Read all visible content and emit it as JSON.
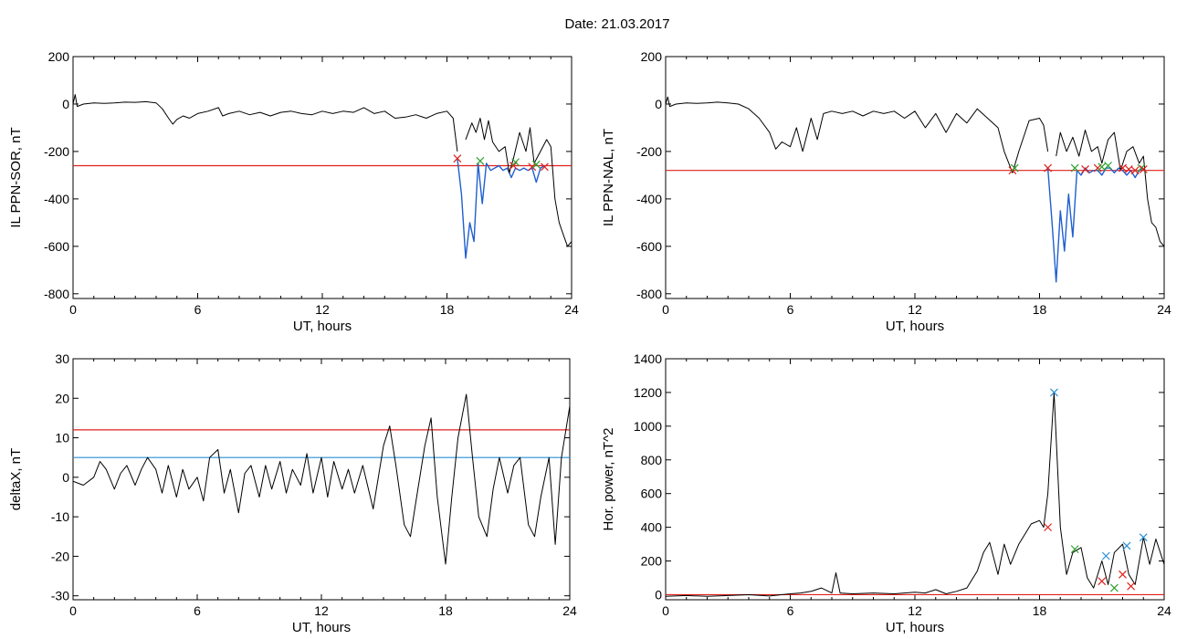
{
  "page": {
    "title": "Date:  21.03.2017"
  },
  "colors": {
    "trace": "#000000",
    "highlight": "#1f5fd0",
    "red": "#e0201c",
    "blue": "#2a8fd6",
    "green": "#2ca02c"
  },
  "chart_data": [
    {
      "type": "line",
      "id": "sor",
      "xlabel": "UT, hours",
      "ylabel": "IL PPN-SOR, nT",
      "xlim": [
        0,
        24
      ],
      "ylim": [
        -820,
        200
      ],
      "xticks": [
        0,
        6,
        12,
        18,
        24
      ],
      "yticks": [
        200,
        0,
        -200,
        -400,
        -600,
        -800
      ],
      "threshold_red": -260,
      "series": [
        {
          "role": "trace",
          "x": [
            0,
            0.1,
            0.2,
            0.5,
            1,
            1.5,
            2,
            2.5,
            3,
            3.5,
            4,
            4.3,
            4.6,
            4.8,
            5.0,
            5.3,
            5.6,
            6,
            6.5,
            7,
            7.2,
            7.5,
            8,
            8.5,
            9,
            9.5,
            10,
            10.5,
            11,
            11.5,
            12,
            12.5,
            13,
            13.5,
            14,
            14.5,
            15,
            15.5,
            16,
            16.5,
            17,
            17.5,
            18,
            18.3,
            18.5
          ],
          "y": [
            0,
            40,
            -10,
            0,
            5,
            3,
            5,
            8,
            7,
            10,
            5,
            -20,
            -60,
            -85,
            -65,
            -50,
            -60,
            -40,
            -30,
            -15,
            -50,
            -40,
            -30,
            -45,
            -35,
            -50,
            -35,
            -30,
            -40,
            -45,
            -30,
            -40,
            -30,
            -35,
            -15,
            -40,
            -30,
            -60,
            -55,
            -45,
            -60,
            -40,
            -30,
            -60,
            -200
          ]
        },
        {
          "role": "highlight",
          "x": [
            18.5,
            18.7,
            18.9,
            19.1,
            19.3,
            19.5,
            19.7,
            19.9,
            20.1,
            20.3,
            20.5,
            20.7,
            20.9,
            21.1,
            21.3,
            21.5,
            21.7,
            21.9,
            22.1,
            22.3,
            22.5,
            22.7
          ],
          "y": [
            -230,
            -380,
            -650,
            -500,
            -580,
            -250,
            -420,
            -250,
            -280,
            -270,
            -260,
            -280,
            -270,
            -310,
            -270,
            -280,
            -270,
            -280,
            -270,
            -330,
            -270,
            -260
          ]
        },
        {
          "role": "trace",
          "x": [
            18.9,
            19.2,
            19.4,
            19.6,
            19.8,
            20.0,
            20.2,
            20.5,
            20.8,
            21.0,
            21.2,
            21.5,
            21.8,
            22.0,
            22.2,
            22.5,
            22.8,
            23.0,
            23.2,
            23.4,
            23.6,
            23.8,
            24
          ],
          "y": [
            -150,
            -80,
            -120,
            -60,
            -150,
            -70,
            -160,
            -200,
            -180,
            -290,
            -230,
            -120,
            -200,
            -100,
            -250,
            -200,
            -150,
            -180,
            -400,
            -500,
            -550,
            -600,
            -580
          ]
        }
      ],
      "markers": [
        {
          "x": 18.5,
          "y": -230,
          "color": "red"
        },
        {
          "x": 19.6,
          "y": -240,
          "color": "green"
        },
        {
          "x": 21.2,
          "y": -260,
          "color": "red"
        },
        {
          "x": 21.3,
          "y": -245,
          "color": "green"
        },
        {
          "x": 22.1,
          "y": -265,
          "color": "red"
        },
        {
          "x": 22.3,
          "y": -255,
          "color": "green"
        },
        {
          "x": 22.7,
          "y": -265,
          "color": "red"
        }
      ]
    },
    {
      "type": "line",
      "id": "nal",
      "xlabel": "UT, hours",
      "ylabel": "IL PPN-NAL, nT",
      "xlim": [
        0,
        24
      ],
      "ylim": [
        -820,
        200
      ],
      "xticks": [
        0,
        6,
        12,
        18,
        24
      ],
      "yticks": [
        200,
        0,
        -200,
        -400,
        -600,
        -800
      ],
      "threshold_red": -280,
      "series": [
        {
          "role": "trace",
          "x": [
            0,
            0.1,
            0.2,
            0.5,
            1,
            1.5,
            2,
            2.5,
            3,
            3.5,
            4,
            4.5,
            5,
            5.3,
            5.6,
            6,
            6.3,
            6.6,
            7,
            7.3,
            7.6,
            8,
            8.5,
            9,
            9.5,
            10,
            10.5,
            11,
            11.5,
            12,
            12.5,
            13,
            13.5,
            14,
            14.5,
            15,
            15.5,
            16,
            16.3,
            16.7,
            17,
            17.5,
            18,
            18.2,
            18.4
          ],
          "y": [
            0,
            30,
            -10,
            0,
            5,
            3,
            5,
            8,
            5,
            0,
            -20,
            -60,
            -120,
            -190,
            -160,
            -180,
            -100,
            -200,
            -60,
            -150,
            -40,
            -30,
            -40,
            -30,
            -50,
            -30,
            -40,
            -30,
            -60,
            -30,
            -100,
            -40,
            -120,
            -40,
            -80,
            -20,
            -60,
            -100,
            -200,
            -290,
            -200,
            -70,
            -60,
            -90,
            -200
          ]
        },
        {
          "role": "highlight",
          "x": [
            18.4,
            18.6,
            18.8,
            19.0,
            19.2,
            19.4,
            19.6,
            19.8,
            20.0,
            20.2,
            20.4,
            20.6,
            20.8,
            21.0,
            21.2,
            21.4,
            21.6,
            21.8,
            22.0,
            22.2,
            22.4,
            22.6,
            22.8,
            23.0
          ],
          "y": [
            -270,
            -500,
            -750,
            -450,
            -620,
            -380,
            -560,
            -280,
            -300,
            -270,
            -290,
            -280,
            -280,
            -300,
            -270,
            -270,
            -290,
            -270,
            -280,
            -300,
            -280,
            -310,
            -280,
            -270
          ]
        },
        {
          "role": "trace",
          "x": [
            18.8,
            19.0,
            19.3,
            19.6,
            19.9,
            20.2,
            20.5,
            20.8,
            21.0,
            21.3,
            21.6,
            21.9,
            22.2,
            22.5,
            22.8,
            23.0,
            23.2,
            23.4,
            23.6,
            23.8,
            24
          ],
          "y": [
            -220,
            -120,
            -200,
            -140,
            -220,
            -110,
            -200,
            -180,
            -250,
            -150,
            -120,
            -280,
            -200,
            -180,
            -250,
            -220,
            -400,
            -500,
            -520,
            -580,
            -600
          ]
        }
      ],
      "markers": [
        {
          "x": 16.7,
          "y": -280,
          "color": "red"
        },
        {
          "x": 16.8,
          "y": -270,
          "color": "green"
        },
        {
          "x": 18.4,
          "y": -270,
          "color": "red"
        },
        {
          "x": 19.7,
          "y": -270,
          "color": "green"
        },
        {
          "x": 20.2,
          "y": -275,
          "color": "red"
        },
        {
          "x": 20.8,
          "y": -270,
          "color": "red"
        },
        {
          "x": 21.0,
          "y": -265,
          "color": "green"
        },
        {
          "x": 21.3,
          "y": -260,
          "color": "green"
        },
        {
          "x": 22.0,
          "y": -270,
          "color": "red"
        },
        {
          "x": 22.3,
          "y": -275,
          "color": "red"
        },
        {
          "x": 22.6,
          "y": -280,
          "color": "red"
        },
        {
          "x": 22.9,
          "y": -270,
          "color": "green"
        },
        {
          "x": 23.0,
          "y": -275,
          "color": "red"
        }
      ]
    },
    {
      "type": "line",
      "id": "deltax",
      "xlabel": "UT, hours",
      "ylabel": "deltaX, nT",
      "xlim": [
        0,
        24
      ],
      "ylim": [
        -31,
        30
      ],
      "xticks": [
        0,
        6,
        12,
        18,
        24
      ],
      "yticks": [
        30,
        20,
        10,
        0,
        -10,
        -20,
        -30
      ],
      "threshold_red": 12,
      "threshold_blue": 5,
      "series": [
        {
          "role": "trace",
          "x": [
            0,
            0.5,
            1,
            1.3,
            1.6,
            2,
            2.3,
            2.6,
            3,
            3.3,
            3.6,
            4,
            4.3,
            4.6,
            5,
            5.3,
            5.6,
            6,
            6.3,
            6.6,
            7,
            7.3,
            7.6,
            8,
            8.3,
            8.6,
            9,
            9.3,
            9.6,
            10,
            10.3,
            10.6,
            11,
            11.3,
            11.6,
            12,
            12.3,
            12.6,
            13,
            13.3,
            13.6,
            14,
            14.5,
            15,
            15.3,
            15.6,
            16,
            16.3,
            16.6,
            17,
            17.3,
            17.6,
            18,
            18.3,
            18.6,
            19,
            19.3,
            19.6,
            20,
            20.3,
            20.6,
            21,
            21.3,
            21.6,
            22,
            22.3,
            22.6,
            23,
            23.3,
            23.6,
            24
          ],
          "y": [
            -1,
            -2,
            0,
            4,
            2,
            -3,
            1,
            3,
            -2,
            2,
            5,
            2,
            -4,
            3,
            -5,
            2,
            -3,
            0,
            -6,
            5,
            7,
            -4,
            2,
            -9,
            1,
            3,
            -5,
            3,
            -3,
            4,
            -4,
            2,
            -2,
            6,
            -4,
            5,
            -5,
            4,
            -3,
            2,
            -4,
            3,
            -8,
            8,
            13,
            3,
            -12,
            -15,
            -5,
            8,
            15,
            -5,
            -22,
            -5,
            10,
            21,
            5,
            -10,
            -15,
            -3,
            5,
            -4,
            3,
            5,
            -12,
            -15,
            -5,
            5,
            -17,
            5,
            18
          ]
        }
      ],
      "markers": []
    },
    {
      "type": "line",
      "id": "power",
      "xlabel": "UT, hours",
      "ylabel": "Hor. power, nT^2",
      "xlim": [
        0,
        24
      ],
      "ylim": [
        -30,
        1400
      ],
      "xticks": [
        0,
        6,
        12,
        18,
        24
      ],
      "yticks": [
        1400,
        1200,
        1000,
        800,
        600,
        400,
        200,
        0
      ],
      "threshold_red": 0,
      "series": [
        {
          "role": "trace",
          "x": [
            0,
            1,
            2,
            3,
            4,
            5,
            6,
            6.5,
            7,
            7.5,
            8,
            8.2,
            8.4,
            9,
            10,
            11,
            12,
            12.5,
            13,
            13.5,
            14,
            14.5,
            15,
            15.3,
            15.6,
            16,
            16.3,
            16.6,
            17,
            17.3,
            17.6,
            18,
            18.2,
            18.4,
            18.7,
            19,
            19.3,
            19.6,
            20,
            20.3,
            20.6,
            21,
            21.3,
            21.6,
            22,
            22.3,
            22.6,
            23,
            23.3,
            23.6,
            24
          ],
          "y": [
            -10,
            -5,
            -10,
            -5,
            0,
            -8,
            5,
            10,
            20,
            40,
            10,
            130,
            10,
            5,
            10,
            5,
            15,
            10,
            30,
            5,
            20,
            40,
            140,
            250,
            310,
            120,
            300,
            180,
            300,
            360,
            420,
            440,
            400,
            600,
            1200,
            400,
            120,
            250,
            280,
            100,
            40,
            200,
            60,
            250,
            300,
            120,
            60,
            340,
            180,
            330,
            180
          ]
        }
      ],
      "markers": [
        {
          "x": 18.7,
          "y": 1200,
          "color": "blue"
        },
        {
          "x": 18.4,
          "y": 400,
          "color": "red"
        },
        {
          "x": 19.7,
          "y": 270,
          "color": "green"
        },
        {
          "x": 21.0,
          "y": 80,
          "color": "red"
        },
        {
          "x": 21.2,
          "y": 230,
          "color": "blue"
        },
        {
          "x": 21.6,
          "y": 40,
          "color": "green"
        },
        {
          "x": 22.0,
          "y": 120,
          "color": "red"
        },
        {
          "x": 22.2,
          "y": 290,
          "color": "blue"
        },
        {
          "x": 22.4,
          "y": 50,
          "color": "red"
        },
        {
          "x": 23.0,
          "y": 340,
          "color": "blue"
        }
      ]
    }
  ]
}
